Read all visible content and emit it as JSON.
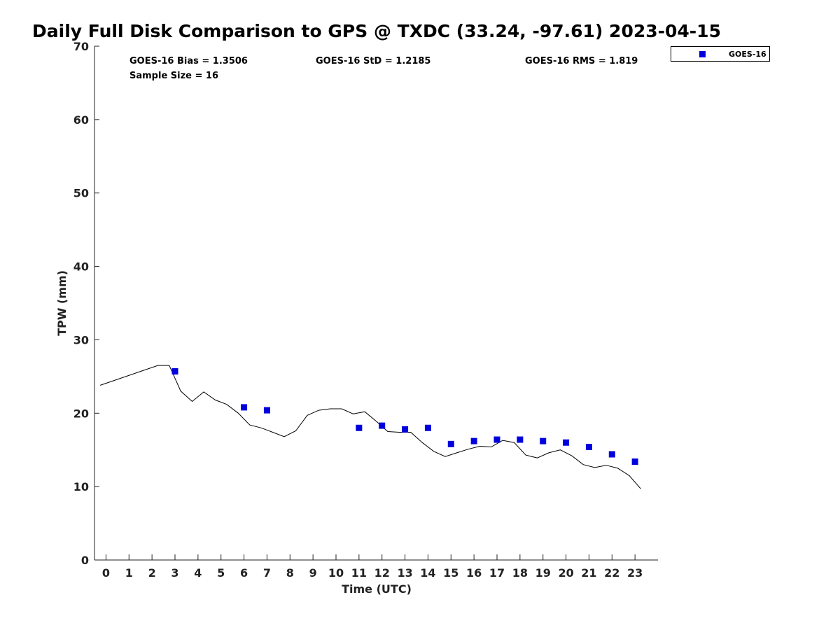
{
  "chart_data": {
    "type": "line",
    "title": "Daily Full Disk Comparison to GPS @ TXDC (33.24, -97.61) 2023-04-15",
    "xlabel": "Time (UTC)",
    "ylabel": "TPW (mm)",
    "xlim": [
      -0.5,
      24
    ],
    "ylim": [
      0,
      70
    ],
    "xticks": [
      0,
      1,
      2,
      3,
      4,
      5,
      6,
      7,
      8,
      9,
      10,
      11,
      12,
      13,
      14,
      15,
      16,
      17,
      18,
      19,
      20,
      21,
      22,
      23
    ],
    "yticks": [
      0,
      10,
      20,
      30,
      40,
      50,
      60,
      70
    ],
    "grid": false,
    "legend_position": "top-right",
    "stats": {
      "bias": "GOES-16 Bias = 1.3506",
      "std": "GOES-16 StD = 1.2185",
      "rms": "GOES-16 RMS = 1.819",
      "sample": "Sample Size = 16"
    },
    "series": [
      {
        "kind": "line",
        "color": "#000000",
        "x": [
          -0.25,
          2.25,
          2.75,
          3.25,
          3.75,
          4.25,
          4.75,
          5.25,
          5.75,
          6.25,
          6.75,
          7.25,
          7.75,
          8.25,
          8.75,
          9.25,
          9.75,
          10.25,
          10.75,
          11.25,
          11.75,
          12.25,
          12.75,
          13.25,
          13.75,
          14.25,
          14.75,
          15.25,
          15.75,
          16.25,
          16.75,
          17.25,
          17.75,
          18.25,
          18.75,
          19.25,
          19.75,
          20.25,
          20.75,
          21.25,
          21.75,
          22.25,
          22.75,
          23.25
        ],
        "values": [
          23.8,
          26.5,
          26.5,
          23.0,
          21.6,
          22.9,
          21.8,
          21.2,
          20.0,
          18.4,
          18.0,
          17.4,
          16.8,
          17.6,
          19.7,
          20.4,
          20.6,
          20.6,
          19.9,
          20.2,
          18.9,
          17.5,
          17.4,
          17.4,
          16.0,
          14.8,
          14.1,
          14.6,
          15.1,
          15.5,
          15.4,
          16.3,
          16.0,
          14.3,
          13.9,
          14.6,
          15.0,
          14.2,
          13.0,
          12.6,
          12.9,
          12.5,
          11.5,
          9.7
        ]
      },
      {
        "kind": "scatter",
        "name": "GOES-16",
        "color": "#0000dd",
        "x": [
          3,
          6,
          7,
          11,
          12,
          13,
          14,
          15,
          16,
          17,
          18,
          19,
          20,
          21,
          22,
          23
        ],
        "values": [
          25.7,
          20.8,
          20.4,
          18.0,
          18.3,
          17.8,
          18.0,
          15.8,
          16.2,
          16.4,
          16.4,
          16.2,
          16.0,
          15.4,
          14.4,
          13.4
        ]
      }
    ]
  }
}
